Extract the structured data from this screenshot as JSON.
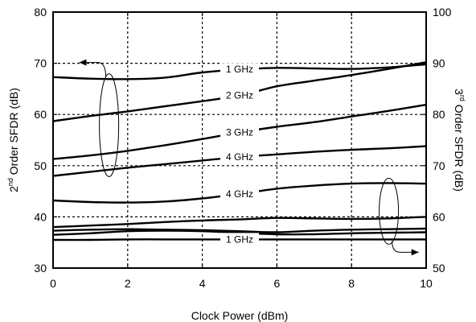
{
  "chart_data": {
    "type": "line",
    "xlabel": "Clock Power (dBm)",
    "ylabel_left": {
      "prefix": "2",
      "sup": "nd",
      "rest": " Order SFDR (dB)"
    },
    "ylabel_right": {
      "prefix": "3",
      "sup": "rd",
      "rest": " Order SFDR (dB)"
    },
    "xlim": [
      0,
      10
    ],
    "ylim_left": [
      30,
      80
    ],
    "ylim_right": [
      50,
      100
    ],
    "xticks": [
      0,
      2,
      4,
      6,
      8,
      10
    ],
    "yticks_left": [
      30,
      40,
      50,
      60,
      70,
      80
    ],
    "yticks_right": [
      50,
      60,
      70,
      80,
      90,
      100
    ],
    "grid": "dashed",
    "series": [
      {
        "name": "1 GHz",
        "axis": "left",
        "label_at": 5,
        "x": [
          0,
          1,
          2,
          3,
          4,
          5,
          6,
          7,
          8,
          9,
          10
        ],
        "y": [
          67.3,
          67.0,
          66.9,
          67.2,
          68.2,
          68.8,
          69.1,
          69.0,
          68.9,
          69.2,
          69.8
        ]
      },
      {
        "name": "2 GHz",
        "axis": "left",
        "label_at": 5,
        "x": [
          0,
          1,
          2,
          3,
          4,
          5,
          6,
          7,
          8,
          9,
          10
        ],
        "y": [
          58.7,
          59.7,
          60.6,
          61.6,
          62.6,
          63.7,
          65.5,
          66.6,
          67.7,
          68.9,
          70.2
        ]
      },
      {
        "name": "3 GHz",
        "axis": "left",
        "label_at": 5,
        "x": [
          0,
          1,
          2,
          3,
          4,
          5,
          6,
          7,
          8,
          9,
          10
        ],
        "y": [
          51.3,
          52.0,
          52.9,
          54.0,
          55.2,
          56.5,
          57.6,
          58.5,
          59.6,
          60.7,
          61.9
        ]
      },
      {
        "name": "4 GHz",
        "axis": "left",
        "label_at": 5,
        "x": [
          0,
          1,
          2,
          3,
          4,
          5,
          6,
          7,
          8,
          9,
          10
        ],
        "y": [
          48.0,
          48.8,
          49.6,
          50.3,
          51.0,
          51.7,
          52.2,
          52.7,
          53.1,
          53.4,
          53.8
        ]
      },
      {
        "name": "4 GHz",
        "axis": "right",
        "label_at": 5,
        "x": [
          0,
          1,
          2,
          3,
          4,
          5,
          6,
          7,
          8,
          9,
          10
        ],
        "y": [
          63.2,
          62.9,
          62.8,
          63.0,
          63.6,
          64.5,
          65.5,
          66.1,
          66.5,
          66.6,
          66.5
        ]
      },
      {
        "name": "",
        "axis": "right",
        "x": [
          0,
          1,
          2,
          3,
          4,
          5,
          6,
          7,
          8,
          9,
          10
        ],
        "y": [
          58.0,
          58.3,
          58.6,
          59.0,
          59.3,
          59.5,
          59.8,
          59.7,
          59.6,
          59.7,
          60.0
        ]
      },
      {
        "name": "",
        "axis": "right",
        "x": [
          0,
          1,
          2,
          3,
          4,
          5,
          6,
          7,
          8,
          9,
          10
        ],
        "y": [
          57.3,
          57.5,
          57.6,
          57.5,
          57.4,
          57.2,
          57.0,
          57.3,
          57.5,
          57.6,
          57.7
        ]
      },
      {
        "name": "",
        "axis": "right",
        "x": [
          0,
          1,
          2,
          3,
          4,
          5,
          6,
          7,
          8,
          9,
          10
        ],
        "y": [
          56.5,
          56.8,
          57.2,
          57.3,
          57.2,
          56.9,
          56.6,
          56.6,
          56.8,
          56.9,
          57.0
        ]
      },
      {
        "name": "1 GHz",
        "axis": "right",
        "label_at": 5,
        "x": [
          0,
          1,
          2,
          3,
          4,
          5,
          6,
          7,
          8,
          9,
          10
        ],
        "y": [
          55.5,
          55.5,
          55.6,
          55.6,
          55.6,
          55.6,
          55.6,
          55.6,
          55.6,
          55.6,
          55.6
        ]
      }
    ],
    "group_annotations": [
      {
        "group": "2nd order curves",
        "points_to_axis": "left"
      },
      {
        "group": "3rd order curves",
        "points_to_axis": "right"
      }
    ]
  }
}
